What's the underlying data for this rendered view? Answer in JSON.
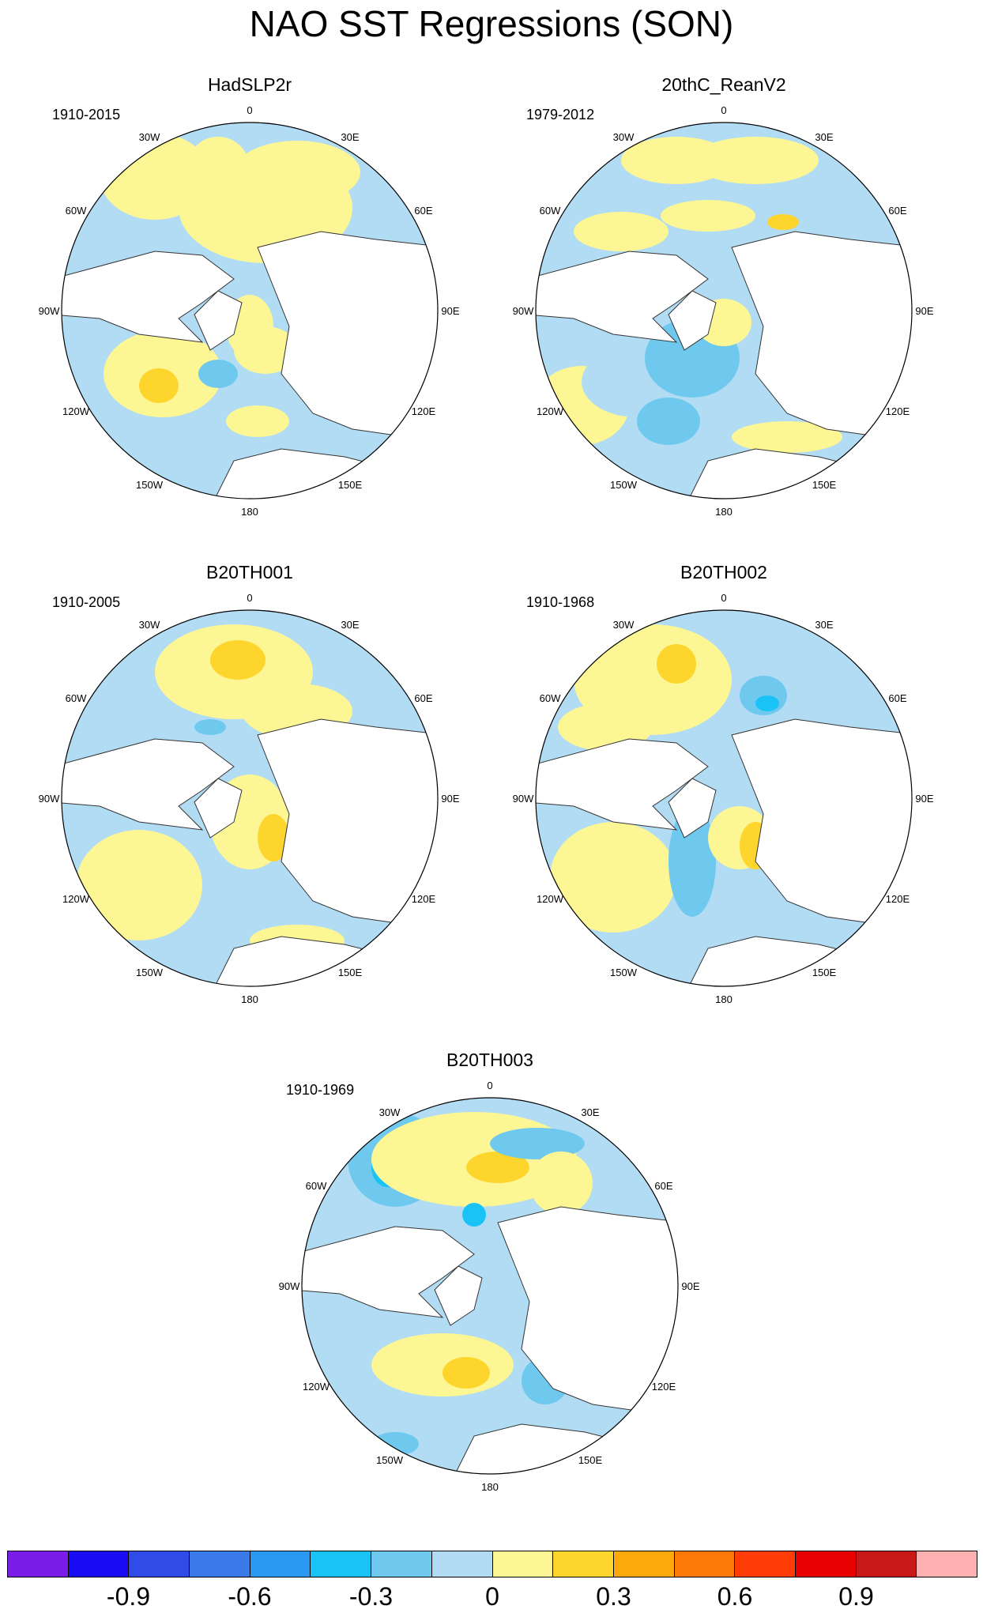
{
  "title": "NAO SST Regressions (SON)",
  "panels": [
    {
      "title": "HadSLP2r",
      "period": "1910-2015"
    },
    {
      "title": "20thC_ReanV2",
      "period": "1979-2012"
    },
    {
      "title": "B20TH001",
      "period": "1910-2005"
    },
    {
      "title": "B20TH002",
      "period": "1910-1968"
    },
    {
      "title": "B20TH003",
      "period": "1910-1969"
    }
  ],
  "lon_labels": [
    "180",
    "150E",
    "120E",
    "90E",
    "60E",
    "30E",
    "0",
    "30W",
    "60W",
    "90W",
    "120W",
    "150W"
  ],
  "colorbar": {
    "colors": [
      "#7a1de8",
      "#1a0cf2",
      "#2f4be8",
      "#3a7ae8",
      "#2999f2",
      "#1ac3f5",
      "#6fc9ef",
      "#b2dcf3",
      "#fdf695",
      "#fdd52d",
      "#fda90e",
      "#fd7a0a",
      "#fd3c06",
      "#e80000",
      "#c81818",
      "#fdb0b0"
    ],
    "labels": [
      "-0.9",
      "-0.6",
      "-0.3",
      "0",
      "0.3",
      "0.6",
      "0.9"
    ]
  }
}
